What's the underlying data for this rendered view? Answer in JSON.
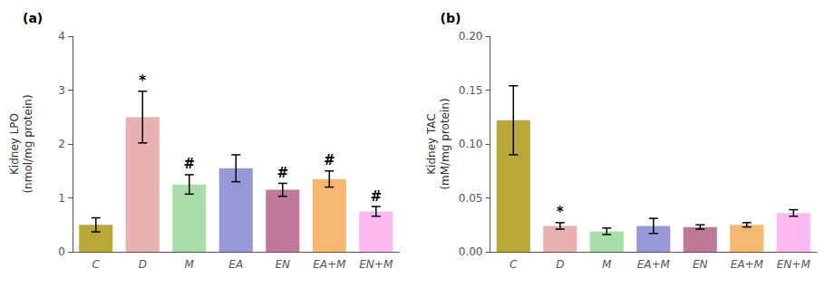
{
  "chart_data": [
    {
      "type": "bar",
      "title": "(a)",
      "categories": [
        "C",
        "D",
        "M",
        "EA",
        "EN",
        "EA+M",
        "EN+M"
      ],
      "values": [
        0.5,
        2.5,
        1.25,
        1.55,
        1.15,
        1.35,
        0.75
      ],
      "errors": [
        0.13,
        0.48,
        0.18,
        0.25,
        0.12,
        0.15,
        0.09
      ],
      "colors": [
        "#b8a838",
        "#e8b0b0",
        "#a8dca8",
        "#9898d8",
        "#c07898",
        "#f4b870",
        "#ffb8f0"
      ],
      "ylabel": "Kidney LPO\n(nmol/mg protein)",
      "ylim": [
        0,
        4
      ],
      "yticks": [
        0,
        1,
        2,
        3,
        4
      ],
      "annotations": [
        {
          "index": 1,
          "text": "*"
        },
        {
          "index": 2,
          "text": "#"
        },
        {
          "index": 4,
          "text": "#"
        },
        {
          "index": 5,
          "text": "#"
        },
        {
          "index": 6,
          "text": "#"
        }
      ],
      "grid": false
    },
    {
      "type": "bar",
      "title": "(b)",
      "categories": [
        "C",
        "D",
        "M",
        "EA+M",
        "EN",
        "EA+M",
        "EN+M"
      ],
      "values": [
        0.122,
        0.024,
        0.019,
        0.024,
        0.023,
        0.025,
        0.036
      ],
      "errors": [
        0.032,
        0.003,
        0.003,
        0.007,
        0.002,
        0.002,
        0.003
      ],
      "colors": [
        "#b8a838",
        "#e8b0b0",
        "#a8dca8",
        "#9898d8",
        "#c07898",
        "#f4b870",
        "#ffb8f0"
      ],
      "ylabel": "Kidney TAC\n(mM/mg protein)",
      "ylim": [
        0,
        0.2
      ],
      "yticks": [
        {
          "value": 0.0,
          "label": "0.00"
        },
        0.05,
        {
          "value": 0.1,
          "label": "0.10"
        },
        0.15,
        {
          "value": 0.2,
          "label": "0.20"
        }
      ],
      "annotations": [
        {
          "index": 1,
          "text": "*"
        }
      ],
      "grid": false
    }
  ]
}
